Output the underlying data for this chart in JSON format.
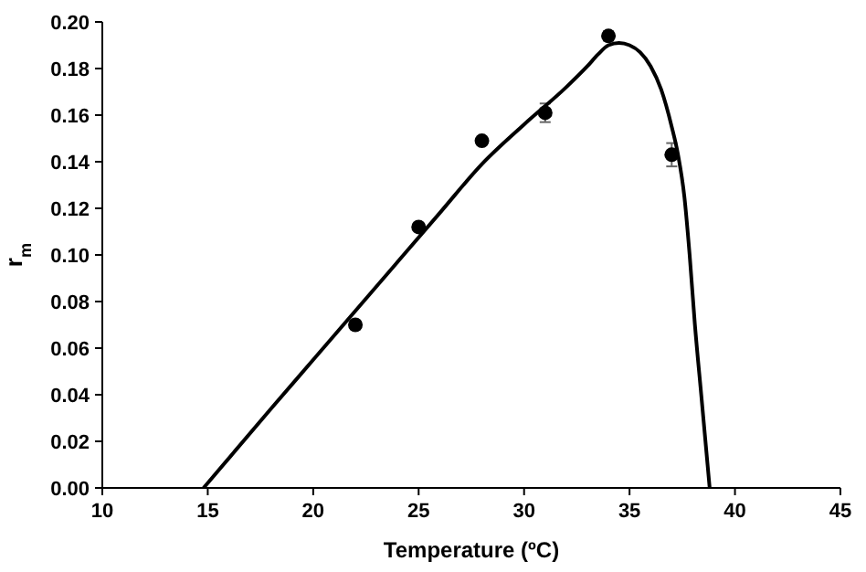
{
  "chart_data": {
    "type": "scatter",
    "xlabel": "Temperature (ºC)",
    "ylabel": "r$_{m}$",
    "xlim": [
      10,
      45
    ],
    "ylim": [
      0,
      0.2
    ],
    "xticks": [
      10,
      15,
      20,
      25,
      30,
      35,
      40,
      45
    ],
    "yticks": [
      {
        "value": 0,
        "label": "0.00"
      },
      {
        "value": 0.02,
        "label": "0.02"
      },
      {
        "value": 0.04,
        "label": "0.04"
      },
      {
        "value": 0.06,
        "label": "0.06"
      },
      {
        "value": 0.08,
        "label": "0.08"
      },
      {
        "value": 0.1,
        "label": "0.10"
      },
      {
        "value": 0.12,
        "label": "0.12"
      },
      {
        "value": 0.14,
        "label": "0.14"
      },
      {
        "value": 0.16,
        "label": "0.16"
      },
      {
        "value": 0.18,
        "label": "0.18"
      },
      {
        "value": 0.2,
        "label": "0.20"
      }
    ],
    "grid": false,
    "series": [
      {
        "color": "#000000",
        "marker": "circle",
        "x": [
          22,
          25,
          28,
          31,
          34,
          37
        ],
        "values": [
          0.07,
          0.112,
          0.149,
          0.161,
          0.194,
          0.143
        ],
        "errors": [
          null,
          null,
          null,
          0.004,
          0.002,
          0.005
        ]
      },
      {
        "type": "line",
        "color": "#000000",
        "line_style": "solid",
        "x": [
          14.8,
          18,
          20,
          22,
          24,
          26,
          28,
          30,
          32,
          33,
          33.5,
          34,
          34.5,
          35,
          35.5,
          36,
          36.5,
          37,
          37.3,
          37.6,
          37.85,
          38.1,
          38.4,
          38.8
        ],
        "values": [
          0,
          0.034,
          0.055,
          0.076,
          0.097,
          0.118,
          0.139,
          0.156,
          0.172,
          0.181,
          0.186,
          0.19,
          0.191,
          0.19,
          0.187,
          0.181,
          0.171,
          0.155,
          0.143,
          0.125,
          0.1,
          0.07,
          0.04,
          0
        ]
      }
    ]
  }
}
